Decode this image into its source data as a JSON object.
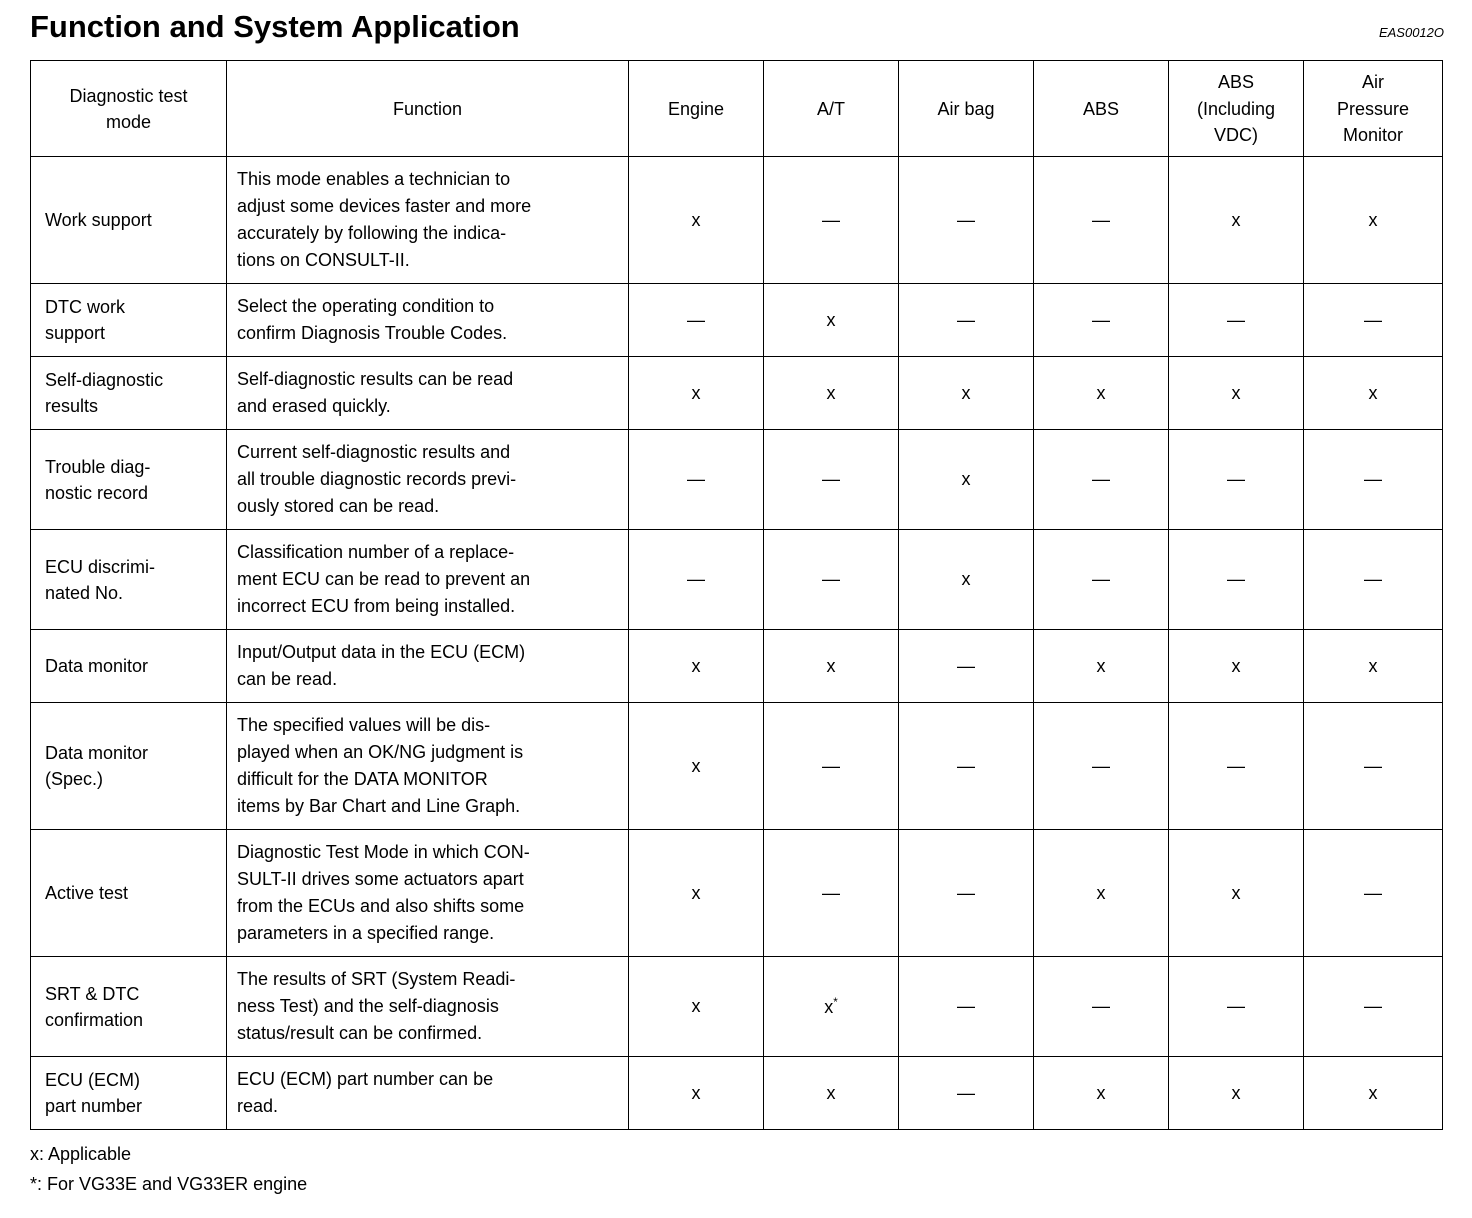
{
  "page": {
    "title": "Function and System Application",
    "doc_code": "EAS0012O"
  },
  "table": {
    "headers": [
      "Diagnostic test\nmode",
      "Function",
      "Engine",
      "A/T",
      "Air bag",
      "ABS",
      "ABS\n(Including\nVDC)",
      "Air\nPressure\nMonitor"
    ],
    "rows": [
      {
        "mode": "Work support",
        "function": "This mode enables a technician to\nadjust some devices faster and more\naccurately by following the indica-\ntions on CONSULT-II.",
        "values": [
          "x",
          "—",
          "—",
          "—",
          "x",
          "x"
        ]
      },
      {
        "mode": "DTC work\nsupport",
        "function": "Select the operating condition to\nconfirm Diagnosis Trouble Codes.",
        "values": [
          "—",
          "x",
          "—",
          "—",
          "—",
          "—"
        ]
      },
      {
        "mode": "Self-diagnostic\nresults",
        "function": "Self-diagnostic results can be read\nand erased quickly.",
        "values": [
          "x",
          "x",
          "x",
          "x",
          "x",
          "x"
        ]
      },
      {
        "mode": "Trouble diag-\nnostic record",
        "function": "Current self-diagnostic results and\nall trouble diagnostic records previ-\nously stored can be read.",
        "values": [
          "—",
          "—",
          "x",
          "—",
          "—",
          "—"
        ]
      },
      {
        "mode": "ECU discrimi-\nnated No.",
        "function": "Classification number of a replace-\nment ECU can be read to prevent an\nincorrect ECU from being installed.",
        "values": [
          "—",
          "—",
          "x",
          "—",
          "—",
          "—"
        ]
      },
      {
        "mode": "Data monitor",
        "function": "Input/Output data in the ECU (ECM)\ncan be read.",
        "values": [
          "x",
          "x",
          "—",
          "x",
          "x",
          "x"
        ]
      },
      {
        "mode": "Data monitor\n(Spec.)",
        "function": "The specified values will be dis-\nplayed when an OK/NG judgment is\ndifficult for the DATA MONITOR\nitems by Bar Chart and Line Graph.",
        "values": [
          "x",
          "—",
          "—",
          "—",
          "—",
          "—"
        ]
      },
      {
        "mode": "Active test",
        "function": "Diagnostic Test Mode in which CON-\nSULT-II drives some actuators apart\nfrom the ECUs and also shifts some\nparameters in a specified range.",
        "values": [
          "x",
          "—",
          "—",
          "x",
          "x",
          "—"
        ]
      },
      {
        "mode": "SRT & DTC\nconfirmation",
        "function": "The results of SRT (System Readi-\nness Test) and the self-diagnosis\nstatus/result can be confirmed.",
        "values": [
          "x",
          "x*",
          "—",
          "—",
          "—",
          "—"
        ]
      },
      {
        "mode": "ECU (ECM)\npart number",
        "function": "ECU (ECM) part number can be\nread.",
        "values": [
          "x",
          "x",
          "—",
          "x",
          "x",
          "x"
        ]
      }
    ]
  },
  "footnotes": [
    "x: Applicable",
    "*: For VG33E and VG33ER engine"
  ]
}
